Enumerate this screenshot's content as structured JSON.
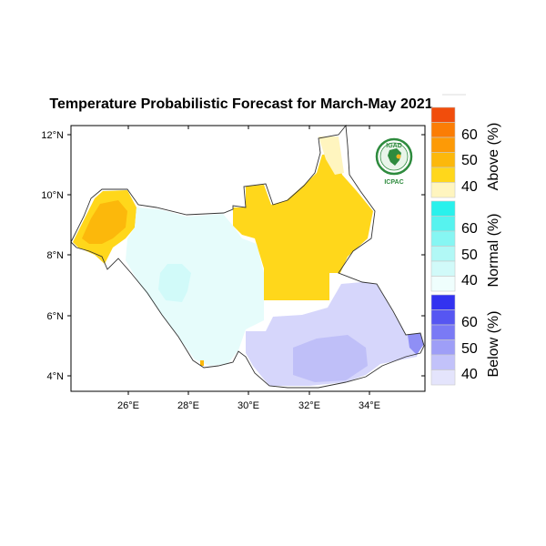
{
  "title": "Temperature Probabilistic Forecast for March-May 2021",
  "logo": {
    "top_text": "IGAD",
    "bottom_text": "ICPAC",
    "icon": "igad-icpac-logo"
  },
  "axes": {
    "lon_ticks": [
      "26°E",
      "28°E",
      "30°E",
      "32°E",
      "34°E"
    ],
    "lat_ticks": [
      "12°N",
      "10°N",
      "8°N",
      "6°N",
      "4°N"
    ]
  },
  "legend": {
    "above": {
      "caption": "Above (%)",
      "labels": [
        "60",
        "50",
        "40"
      ],
      "colors": [
        "#f14d0c",
        "#fb7d05",
        "#fd9a06",
        "#fcb80b",
        "#ffd71b",
        "#fff5bf"
      ]
    },
    "normal": {
      "caption": "Normal (%)",
      "labels": [
        "60",
        "50",
        "40"
      ],
      "colors": [
        "#29f1ec",
        "#56f3ef",
        "#86f6f3",
        "#b1f8f6",
        "#d1faf9",
        "#effefd"
      ]
    },
    "below": {
      "caption": "Below (%)",
      "labels": [
        "60",
        "50",
        "40"
      ],
      "colors": [
        "#3232f0",
        "#5656f2",
        "#7a7af5",
        "#9e9ef7",
        "#c2c2fa",
        "#e4e4fc"
      ]
    }
  },
  "colors": {
    "outline": "#333333",
    "frame": "#000000"
  }
}
